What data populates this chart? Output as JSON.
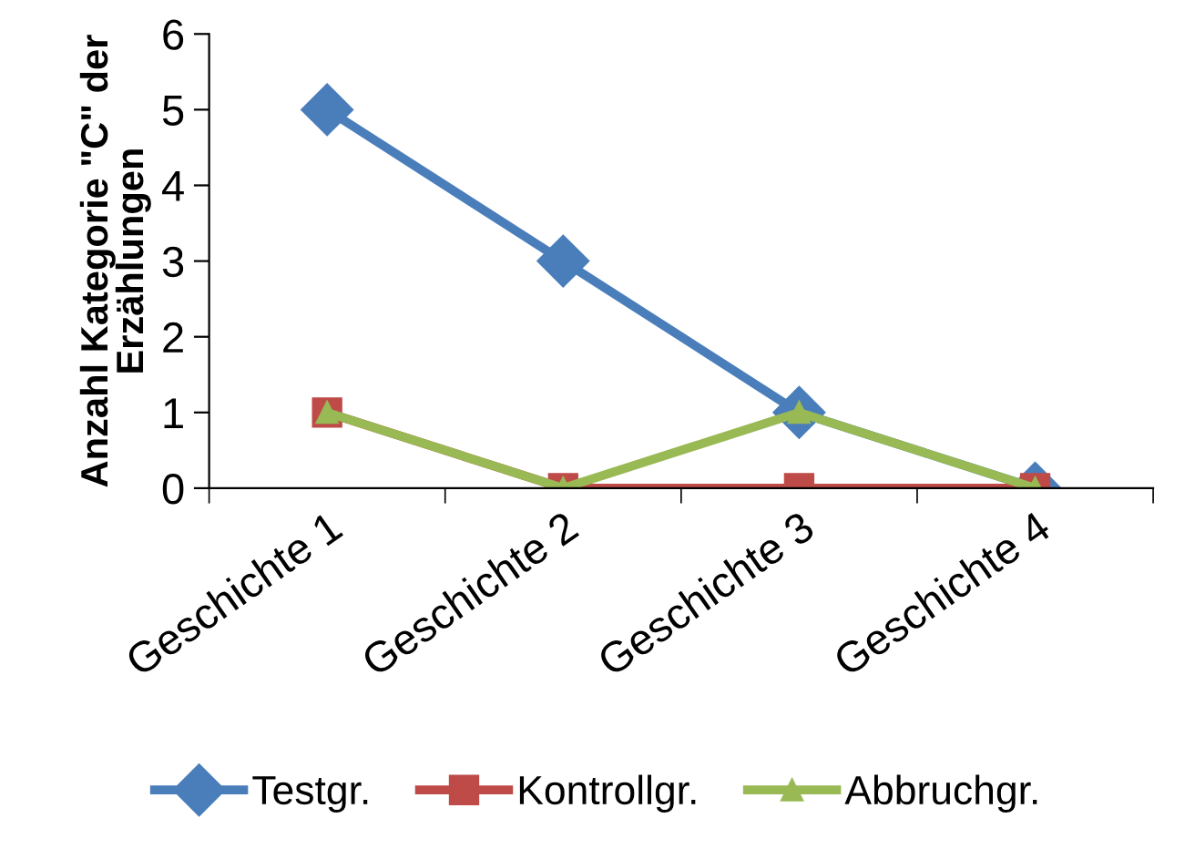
{
  "chart_data": {
    "type": "line",
    "ylabel": "Anzahl Kategorie \"C\" der\nErzählungen",
    "categories": [
      "Geschichte 1",
      "Geschichte 2",
      "Geschichte 3",
      "Geschichte 4"
    ],
    "series": [
      {
        "name": "Testgr.",
        "color": "#4a7ebb",
        "marker": "diamond",
        "values": [
          5,
          3,
          1,
          0
        ]
      },
      {
        "name": "Kontrollgr.",
        "color": "#be4b48",
        "marker": "square",
        "values": [
          1,
          0,
          0,
          0
        ]
      },
      {
        "name": "Abbruchgr.",
        "color": "#98b954",
        "marker": "triangle",
        "values": [
          1,
          0,
          1,
          0
        ]
      }
    ],
    "ylim": [
      0,
      6
    ],
    "yticks": [
      0,
      1,
      2,
      3,
      4,
      5,
      6
    ],
    "grid": false,
    "legend": "bottom",
    "line_style": "solid"
  }
}
